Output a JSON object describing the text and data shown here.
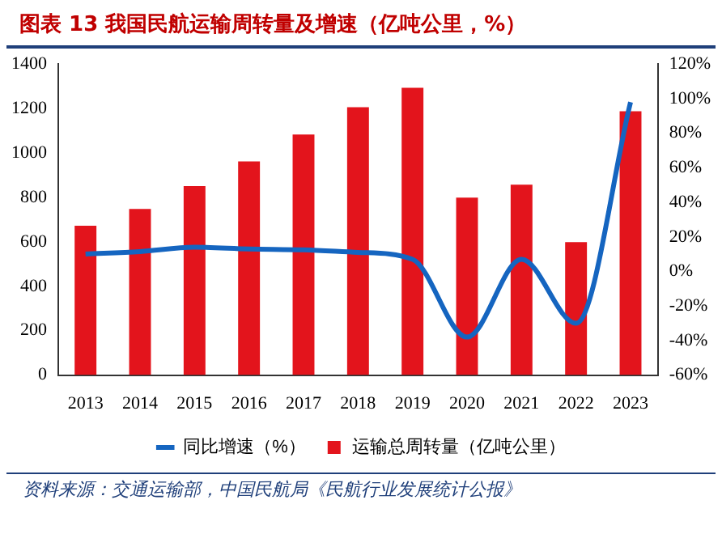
{
  "chart_data": {
    "type": "bar",
    "title": "图表 13  我国民航运输周转量及增速（亿吨公里，%）",
    "categories": [
      "2013",
      "2014",
      "2015",
      "2016",
      "2017",
      "2018",
      "2019",
      "2020",
      "2021",
      "2022",
      "2023"
    ],
    "series": [
      {
        "name": "运输总周转量（亿吨公里）",
        "color": "#e3141c",
        "values": [
          672,
          748,
          851,
          962,
          1083,
          1206,
          1293,
          799,
          857,
          599,
          1188
        ]
      },
      {
        "name": "同比增速（%）",
        "type": "line",
        "axis": "y2",
        "color": "#1565c0",
        "values": [
          10,
          11.5,
          14,
          13,
          12.5,
          11,
          7,
          -38,
          7,
          -30,
          98
        ]
      }
    ],
    "ylim": [
      0,
      1400
    ],
    "yticks": [
      0,
      200,
      400,
      600,
      800,
      1000,
      1200,
      1400
    ],
    "y2lim": [
      -60,
      120
    ],
    "y2ticks": [
      {
        "value": -60,
        "label": "-60%"
      },
      {
        "value": -40,
        "label": "-40%"
      },
      {
        "value": -20,
        "label": "-20%"
      },
      {
        "value": 0,
        "label": "0%"
      },
      {
        "value": 20,
        "label": "20%"
      },
      {
        "value": 40,
        "label": "40%"
      },
      {
        "value": 60,
        "label": "60%"
      },
      {
        "value": 80,
        "label": "80%"
      },
      {
        "value": 100,
        "label": "100%"
      },
      {
        "value": 120,
        "label": "120%"
      }
    ],
    "grid": false,
    "legend": "bottom",
    "annotations": [
      "资料来源：交通运输部，中国民航局《民航行业发展统计公报》"
    ]
  }
}
